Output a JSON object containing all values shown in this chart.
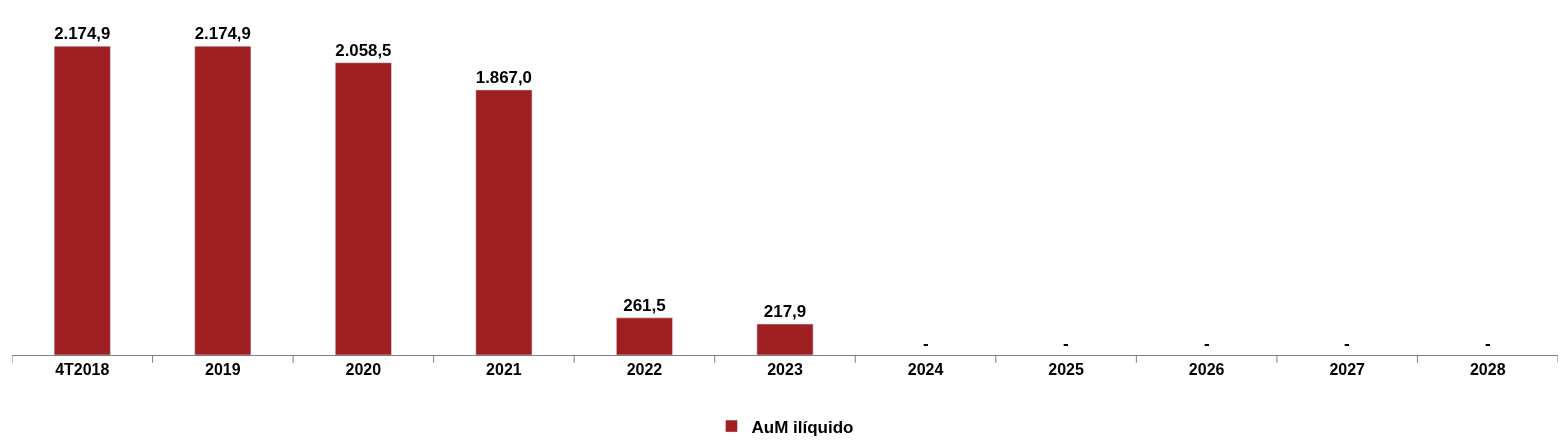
{
  "chart_data": {
    "type": "bar",
    "categories": [
      "4T2018",
      "2019",
      "2020",
      "2021",
      "2022",
      "2023",
      "2024",
      "2025",
      "2026",
      "2027",
      "2028"
    ],
    "series": [
      {
        "name": "AuM ilíquido",
        "color": "#a01f22",
        "values": [
          2174.9,
          2174.9,
          2058.5,
          1867.0,
          261.5,
          217.9,
          null,
          null,
          null,
          null,
          null
        ],
        "value_labels": [
          "2.174,9",
          "2.174,9",
          "2.058,5",
          "1.867,0",
          "261,5",
          "217,9",
          "-",
          "-",
          "-",
          "-",
          "-"
        ]
      }
    ],
    "legend": "bottom"
  }
}
